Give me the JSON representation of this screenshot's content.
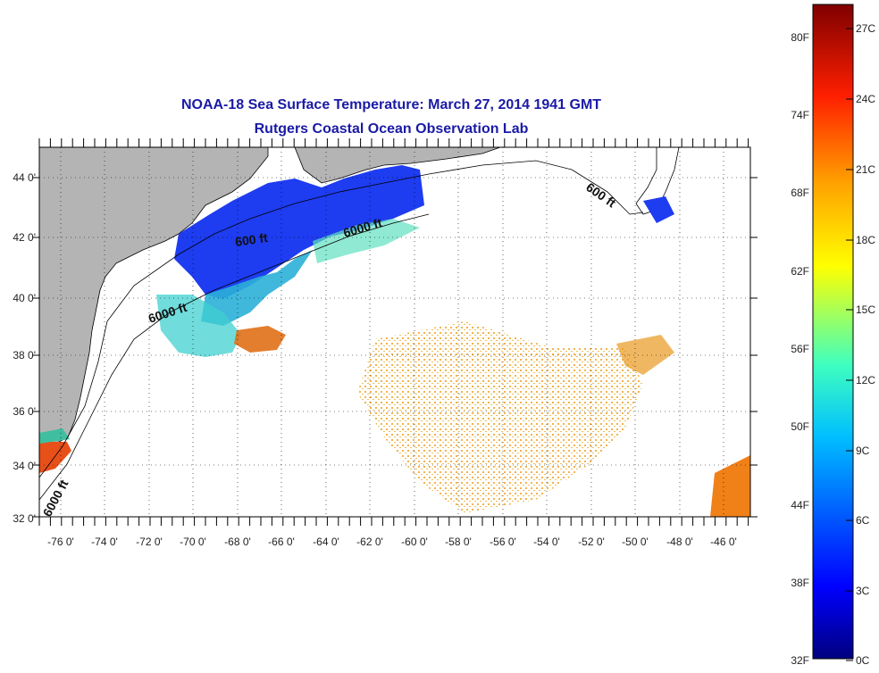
{
  "title": {
    "line1": "NOAA-18 Sea Surface Temperature:  March 27, 2014 1941 GMT",
    "line2": "Rutgers Coastal Ocean Observation Lab"
  },
  "map": {
    "lat_labels": [
      "44 0'",
      "42 0'",
      "40 0'",
      "38 0'",
      "36 0'",
      "34 0'",
      "32 0'"
    ],
    "lon_labels": [
      "-76 0'",
      "-74 0'",
      "-72 0'",
      "-70 0'",
      "-68 0'",
      "-66 0'",
      "-64 0'",
      "-62 0'",
      "-60 0'",
      "-58 0'",
      "-56 0'",
      "-54 0'",
      "-52 0'",
      "-50 0'",
      "-48 0'",
      "-46 0'"
    ],
    "contour_labels": [
      "600 ft",
      "6000 ft",
      "600 ft",
      "6000 ft",
      "6000 ft"
    ]
  },
  "colorbar": {
    "fahrenheit_labels": [
      "80F",
      "74F",
      "68F",
      "62F",
      "56F",
      "50F",
      "44F",
      "38F",
      "32F"
    ],
    "celsius_labels": [
      "27C",
      "24C",
      "21C",
      "18C",
      "15C",
      "12C",
      "9C",
      "6C",
      "3C",
      "0C"
    ],
    "range_c": [
      0,
      28
    ],
    "colors": [
      "#00007f",
      "#0000ff",
      "#007fff",
      "#00ffff",
      "#7fff7f",
      "#ffff00",
      "#ff7f00",
      "#ff0000",
      "#7f0000"
    ]
  },
  "colors": {
    "land": "#b4b4b4",
    "title": "#1a1aa6"
  }
}
